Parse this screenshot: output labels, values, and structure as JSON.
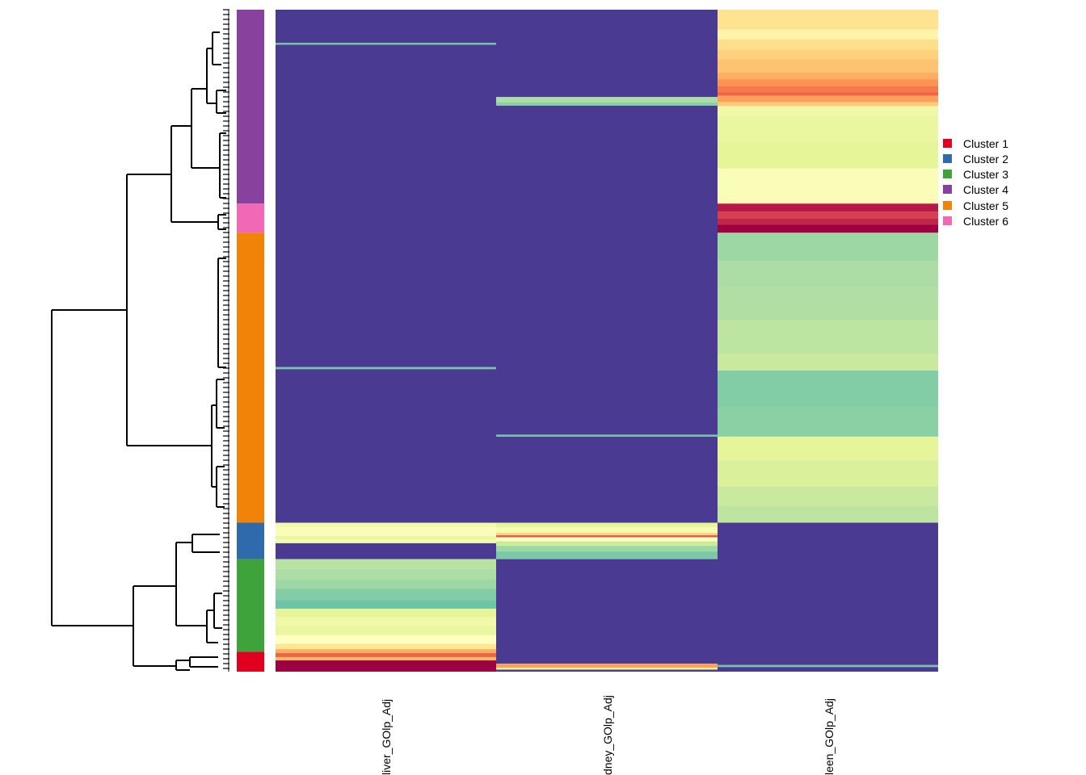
{
  "chart_data": {
    "type": "heatmap",
    "title": "",
    "columns": [
      "liver_GOlp_Adj",
      "kidney_GOlp_Adj",
      "spleen_GOlp_Adj"
    ],
    "column_labels_visible": [
      "liver_GOlp_Adj",
      "dney_GOlp_Adj",
      "leen_GOlp_Adj"
    ],
    "row_clusters": [
      {
        "name": "Cluster 4",
        "color": "#88419d",
        "row_fraction": [
          0.0,
          0.293
        ]
      },
      {
        "name": "Cluster 6",
        "color": "#f168b7",
        "row_fraction": [
          0.293,
          0.337
        ]
      },
      {
        "name": "Cluster 5",
        "color": "#f08308",
        "row_fraction": [
          0.337,
          0.775
        ]
      },
      {
        "name": "Cluster 2",
        "color": "#2f6aac",
        "row_fraction": [
          0.775,
          0.83
        ]
      },
      {
        "name": "Cluster 3",
        "color": "#3da33a",
        "row_fraction": [
          0.83,
          0.97
        ]
      },
      {
        "name": "Cluster 1",
        "color": "#e1001f",
        "row_fraction": [
          0.97,
          1.0
        ]
      }
    ],
    "legend": {
      "position": "right",
      "entries": [
        {
          "label": "Cluster 1",
          "color": "#e1001f"
        },
        {
          "label": "Cluster 2",
          "color": "#2f6aac"
        },
        {
          "label": "Cluster 3",
          "color": "#3da33a"
        },
        {
          "label": "Cluster 4",
          "color": "#88419d"
        },
        {
          "label": "Cluster 5",
          "color": "#f08308"
        },
        {
          "label": "Cluster 6",
          "color": "#f168b7"
        }
      ]
    },
    "color_scale": {
      "name": "Spectral (reversed)",
      "stops": [
        "#4b3a91",
        "#3f8fbf",
        "#66c2a5",
        "#abdda4",
        "#e6f598",
        "#ffffbf",
        "#fee08b",
        "#fdae61",
        "#f46d43",
        "#d53e4f",
        "#9e0142"
      ]
    },
    "cells": [
      {
        "column": 0,
        "segments": [
          {
            "from": 0.0,
            "to": 0.05,
            "value": 0.0
          },
          {
            "from": 0.05,
            "to": 0.053,
            "value": 0.22
          },
          {
            "from": 0.053,
            "to": 0.54,
            "value": 0.0
          },
          {
            "from": 0.54,
            "to": 0.543,
            "value": 0.22
          },
          {
            "from": 0.543,
            "to": 0.775,
            "value": 0.0
          },
          {
            "from": 0.775,
            "to": 0.782,
            "value": 0.45
          },
          {
            "from": 0.782,
            "to": 0.795,
            "value": 0.48
          },
          {
            "from": 0.795,
            "to": 0.8,
            "value": 0.42
          },
          {
            "from": 0.8,
            "to": 0.806,
            "value": 0.45
          },
          {
            "from": 0.806,
            "to": 0.83,
            "value": 0.0
          },
          {
            "from": 0.83,
            "to": 0.845,
            "value": 0.32
          },
          {
            "from": 0.845,
            "to": 0.86,
            "value": 0.3
          },
          {
            "from": 0.86,
            "to": 0.875,
            "value": 0.28
          },
          {
            "from": 0.875,
            "to": 0.892,
            "value": 0.24
          },
          {
            "from": 0.892,
            "to": 0.905,
            "value": 0.21
          },
          {
            "from": 0.905,
            "to": 0.918,
            "value": 0.4
          },
          {
            "from": 0.918,
            "to": 0.93,
            "value": 0.44
          },
          {
            "from": 0.93,
            "to": 0.945,
            "value": 0.42
          },
          {
            "from": 0.945,
            "to": 0.958,
            "value": 0.5
          },
          {
            "from": 0.958,
            "to": 0.966,
            "value": 0.58
          },
          {
            "from": 0.966,
            "to": 0.972,
            "value": 0.7
          },
          {
            "from": 0.972,
            "to": 0.978,
            "value": 0.82
          },
          {
            "from": 0.978,
            "to": 0.983,
            "value": 0.68
          },
          {
            "from": 0.983,
            "to": 1.0,
            "value": 1.0
          }
        ]
      },
      {
        "column": 1,
        "segments": [
          {
            "from": 0.0,
            "to": 0.132,
            "value": 0.0
          },
          {
            "from": 0.132,
            "to": 0.14,
            "value": 0.3
          },
          {
            "from": 0.14,
            "to": 0.145,
            "value": 0.25
          },
          {
            "from": 0.145,
            "to": 0.642,
            "value": 0.0
          },
          {
            "from": 0.642,
            "to": 0.645,
            "value": 0.22
          },
          {
            "from": 0.645,
            "to": 0.775,
            "value": 0.0
          },
          {
            "from": 0.775,
            "to": 0.782,
            "value": 0.4
          },
          {
            "from": 0.782,
            "to": 0.79,
            "value": 0.46
          },
          {
            "from": 0.79,
            "to": 0.794,
            "value": 0.62
          },
          {
            "from": 0.794,
            "to": 0.797,
            "value": 0.85
          },
          {
            "from": 0.797,
            "to": 0.803,
            "value": 0.5
          },
          {
            "from": 0.803,
            "to": 0.81,
            "value": 0.36
          },
          {
            "from": 0.81,
            "to": 0.818,
            "value": 0.28
          },
          {
            "from": 0.818,
            "to": 0.83,
            "value": 0.23
          },
          {
            "from": 0.83,
            "to": 0.988,
            "value": 0.0
          },
          {
            "from": 0.988,
            "to": 0.994,
            "value": 0.72
          },
          {
            "from": 0.994,
            "to": 0.997,
            "value": 0.4
          },
          {
            "from": 0.997,
            "to": 1.0,
            "value": 0.0
          }
        ]
      },
      {
        "column": 2,
        "segments": [
          {
            "from": 0.0,
            "to": 0.03,
            "value": 0.59
          },
          {
            "from": 0.03,
            "to": 0.045,
            "value": 0.54
          },
          {
            "from": 0.045,
            "to": 0.06,
            "value": 0.6
          },
          {
            "from": 0.06,
            "to": 0.075,
            "value": 0.63
          },
          {
            "from": 0.075,
            "to": 0.095,
            "value": 0.66
          },
          {
            "from": 0.095,
            "to": 0.105,
            "value": 0.7
          },
          {
            "from": 0.105,
            "to": 0.115,
            "value": 0.74
          },
          {
            "from": 0.115,
            "to": 0.125,
            "value": 0.78
          },
          {
            "from": 0.125,
            "to": 0.13,
            "value": 0.82
          },
          {
            "from": 0.13,
            "to": 0.14,
            "value": 0.72
          },
          {
            "from": 0.14,
            "to": 0.146,
            "value": 0.64
          },
          {
            "from": 0.146,
            "to": 0.16,
            "value": 0.44
          },
          {
            "from": 0.16,
            "to": 0.2,
            "value": 0.42
          },
          {
            "from": 0.2,
            "to": 0.24,
            "value": 0.4
          },
          {
            "from": 0.24,
            "to": 0.285,
            "value": 0.48
          },
          {
            "from": 0.285,
            "to": 0.293,
            "value": 0.52
          },
          {
            "from": 0.293,
            "to": 0.305,
            "value": 0.96
          },
          {
            "from": 0.305,
            "to": 0.315,
            "value": 0.9
          },
          {
            "from": 0.315,
            "to": 0.325,
            "value": 0.94
          },
          {
            "from": 0.325,
            "to": 0.337,
            "value": 1.0
          },
          {
            "from": 0.337,
            "to": 0.38,
            "value": 0.28
          },
          {
            "from": 0.38,
            "to": 0.42,
            "value": 0.3
          },
          {
            "from": 0.42,
            "to": 0.47,
            "value": 0.31
          },
          {
            "from": 0.47,
            "to": 0.52,
            "value": 0.33
          },
          {
            "from": 0.52,
            "to": 0.545,
            "value": 0.35
          },
          {
            "from": 0.545,
            "to": 0.6,
            "value": 0.24
          },
          {
            "from": 0.6,
            "to": 0.645,
            "value": 0.25
          },
          {
            "from": 0.645,
            "to": 0.68,
            "value": 0.4
          },
          {
            "from": 0.68,
            "to": 0.72,
            "value": 0.38
          },
          {
            "from": 0.72,
            "to": 0.75,
            "value": 0.35
          },
          {
            "from": 0.75,
            "to": 0.775,
            "value": 0.33
          },
          {
            "from": 0.775,
            "to": 0.99,
            "value": 0.0
          },
          {
            "from": 0.99,
            "to": 0.993,
            "value": 0.22
          },
          {
            "from": 0.993,
            "to": 1.0,
            "value": 0.0
          }
        ]
      }
    ],
    "row_dendrogram": true
  }
}
